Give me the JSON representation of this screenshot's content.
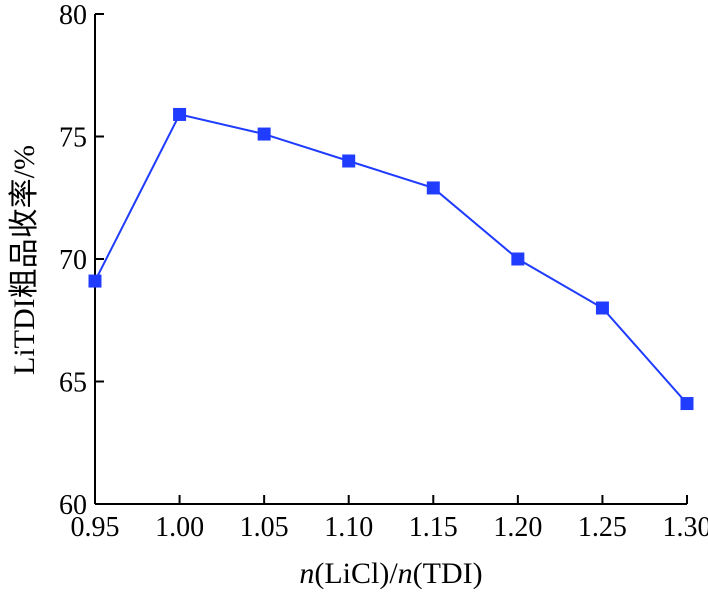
{
  "chart_data": {
    "type": "line",
    "x": [
      0.95,
      1.0,
      1.05,
      1.1,
      1.15,
      1.2,
      1.25,
      1.3
    ],
    "y": [
      69.1,
      75.9,
      75.1,
      74.0,
      72.9,
      70.0,
      68.0,
      64.1
    ],
    "xticks": [
      "0.95",
      "1.00",
      "1.05",
      "1.10",
      "1.15",
      "1.20",
      "1.25",
      "1.30"
    ],
    "yticks": [
      "60",
      "65",
      "70",
      "75",
      "80"
    ],
    "xlim": [
      0.95,
      1.3
    ],
    "ylim": [
      60,
      80
    ],
    "xlabel": "n(LiCl)/n(TDI)",
    "ylabel": "LiTDI粗品收率/%",
    "series_color": "#1f3cff",
    "marker": "square",
    "grid": false,
    "legend": "none"
  }
}
